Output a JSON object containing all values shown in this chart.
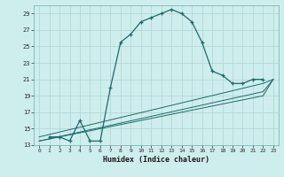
{
  "xlabel": "Humidex (Indice chaleur)",
  "ylabel": "",
  "background_color": "#ceeeed",
  "grid_color": "#aed4d3",
  "line_color": "#1a6b6b",
  "xlim": [
    -0.5,
    23.5
  ],
  "ylim": [
    13,
    30
  ],
  "yticks": [
    13,
    15,
    17,
    19,
    21,
    23,
    25,
    27,
    29
  ],
  "xticks": [
    0,
    1,
    2,
    3,
    4,
    5,
    6,
    7,
    8,
    9,
    10,
    11,
    12,
    13,
    14,
    15,
    16,
    17,
    18,
    19,
    20,
    21,
    22,
    23
  ],
  "series1_x": [
    1,
    2,
    3,
    4,
    5,
    6,
    7,
    8,
    9,
    10,
    11,
    12,
    13,
    14,
    15,
    16,
    17,
    18,
    19,
    20,
    21,
    22
  ],
  "series1_y": [
    14.0,
    14.0,
    13.5,
    16.0,
    13.5,
    13.5,
    20.0,
    25.5,
    26.5,
    28.0,
    28.5,
    29.0,
    29.5,
    29.0,
    28.0,
    25.5,
    22.0,
    21.5,
    20.5,
    20.5,
    21.0,
    21.0
  ],
  "series2_x": [
    0,
    22,
    23
  ],
  "series2_y": [
    14.0,
    20.5,
    21.0
  ],
  "series3_x": [
    0,
    22,
    23
  ],
  "series3_y": [
    13.5,
    19.5,
    21.0
  ],
  "series4_x": [
    0,
    22,
    23
  ],
  "series4_y": [
    13.5,
    19.0,
    21.0
  ]
}
